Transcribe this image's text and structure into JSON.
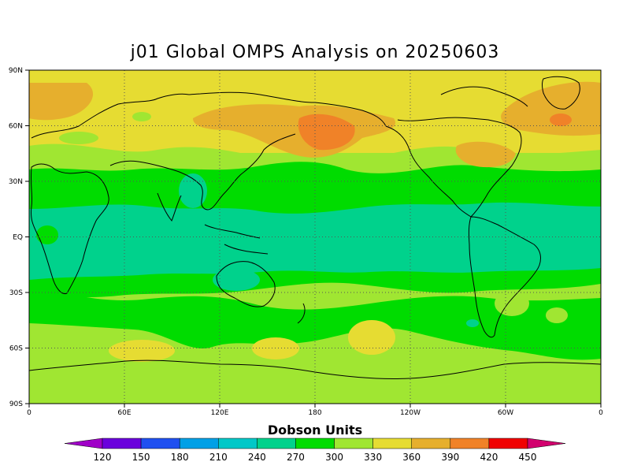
{
  "title": "j01 Global OMPS Analysis on 20250603",
  "colorbar": {
    "title": "Dobson Units",
    "levels": [
      "120",
      "150",
      "180",
      "210",
      "240",
      "270",
      "300",
      "330",
      "360",
      "390",
      "420",
      "450"
    ],
    "colors": [
      "#a000c8",
      "#6a00dc",
      "#2050f0",
      "#00a0e6",
      "#00c8c8",
      "#00d28c",
      "#00dc00",
      "#a0e632",
      "#e6dc32",
      "#e6af2d",
      "#f08228",
      "#f00000",
      "#d2006e"
    ]
  },
  "axes": {
    "lat_labels": [
      "90N",
      "60N",
      "30N",
      "EQ",
      "30S",
      "60S",
      "90S"
    ],
    "lon_labels": [
      "0",
      "60E",
      "120E",
      "180",
      "120W",
      "60W",
      "0"
    ]
  },
  "chart_data": {
    "type": "heatmap",
    "title": "j01 Global OMPS Analysis on 20250603",
    "xlabel": "",
    "ylabel": "",
    "colorbar_label": "Dobson Units",
    "x_range": [
      0,
      360
    ],
    "y_range": [
      -90,
      90
    ],
    "grid": true,
    "bands": [
      {
        "lat_range": [
          75,
          90
        ],
        "value": 345
      },
      {
        "lat_range": [
          45,
          75
        ],
        "value": 355
      },
      {
        "lat_range": [
          30,
          45
        ],
        "value": 315
      },
      {
        "lat_range": [
          15,
          30
        ],
        "value": 285
      },
      {
        "lat_range": [
          -15,
          15
        ],
        "value": 255
      },
      {
        "lat_range": [
          -30,
          -15
        ],
        "value": 275
      },
      {
        "lat_range": [
          -45,
          -30
        ],
        "value": 290
      },
      {
        "lat_range": [
          -90,
          -45
        ],
        "value": 320
      }
    ],
    "anomalies": [
      {
        "lon": 185,
        "lat": 57,
        "value": 395
      },
      {
        "lon": 285,
        "lat": 62,
        "value": 395
      },
      {
        "lon": 260,
        "lat": 48,
        "value": 395
      },
      {
        "lon": 180,
        "lat": -58,
        "value": 335
      }
    ]
  }
}
